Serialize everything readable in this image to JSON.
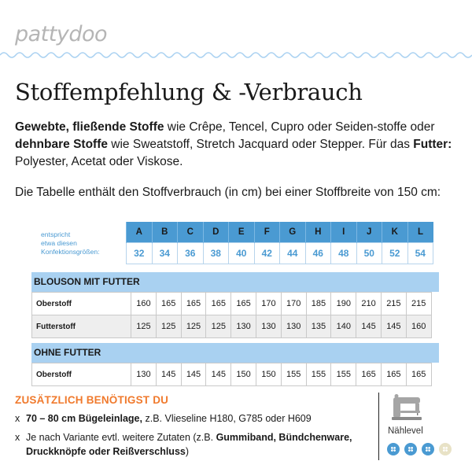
{
  "logo": "pattydoo",
  "title": "Stoffempfehlung & -Verbrauch",
  "intro": {
    "b1": "Gewebte, fließende Stoffe",
    "t1": " wie Crêpe, Tencel, Cupro oder Seiden-stoffe oder ",
    "b2": "dehnbare Stoffe",
    "t2": " wie Sweatstoff, Stretch Jacquard oder Stepper. Für das ",
    "b3": "Futter:",
    "t3": " Polyester, Acetat oder Viskose."
  },
  "para2": "Die Tabelle enthält den Stoffverbrauch (in cm) bei einer Stoffbreite von 150 cm:",
  "sizes_label": [
    "entspricht",
    "etwa diesen",
    "Konfektionsgrößen:"
  ],
  "sizes": {
    "letters": [
      "A",
      "B",
      "C",
      "D",
      "E",
      "F",
      "G",
      "H",
      "I",
      "J",
      "K",
      "L"
    ],
    "numbers": [
      "32",
      "34",
      "36",
      "38",
      "40",
      "42",
      "44",
      "46",
      "48",
      "50",
      "52",
      "54"
    ]
  },
  "sections": [
    {
      "heading": "BLOUSON MIT FUTTER",
      "rows": [
        {
          "label": "Oberstoff",
          "values": [
            "160",
            "165",
            "165",
            "165",
            "165",
            "170",
            "170",
            "185",
            "190",
            "210",
            "215",
            "215"
          ]
        },
        {
          "label": "Futterstoff",
          "values": [
            "125",
            "125",
            "125",
            "125",
            "130",
            "130",
            "130",
            "135",
            "140",
            "145",
            "145",
            "160"
          ]
        }
      ]
    },
    {
      "heading": "OHNE FUTTER",
      "rows": [
        {
          "label": "Oberstoff",
          "values": [
            "130",
            "145",
            "145",
            "145",
            "150",
            "150",
            "155",
            "155",
            "155",
            "165",
            "165",
            "165"
          ]
        }
      ]
    }
  ],
  "extra": {
    "heading": "ZUSÄTZLICH BENÖTIGST DU",
    "items": [
      {
        "bullet": "x",
        "b": "70 – 80 cm Bügeleinlage,",
        "t": " z.B. Vlieseline H180, G785 oder H609"
      },
      {
        "bullet": "x",
        "t": "Je nach Variante evtl. weitere Zutaten (z.B. ",
        "b": "Gummiband, Bündchenware, Druckknöpfe oder Reißverschluss",
        "t2": ")"
      }
    ]
  },
  "sewing_level": {
    "label": "Nählevel",
    "icon": "sewing-machine-icon",
    "level": 3,
    "max": 4,
    "filled_color": "#4a9ad2",
    "empty_color": "#e8e2c6"
  },
  "colors": {
    "accent_blue": "#4a9ad2",
    "light_blue": "#a9d1f1",
    "orange": "#f07a2d"
  }
}
